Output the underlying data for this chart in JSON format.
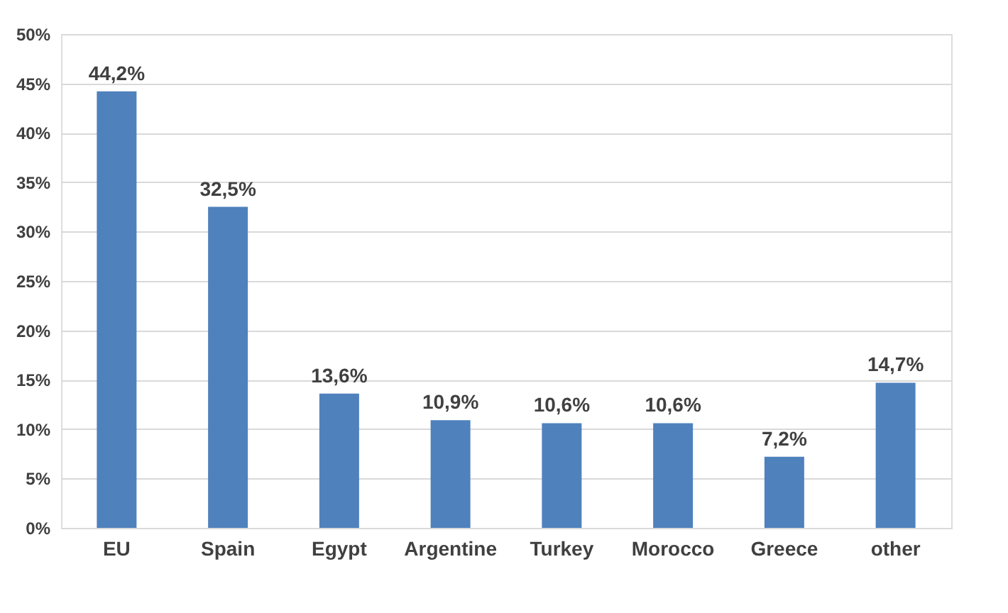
{
  "chart_data": {
    "type": "bar",
    "categories": [
      "EU",
      "Spain",
      "Egypt",
      "Argentine",
      "Turkey",
      "Morocco",
      "Greece",
      "other"
    ],
    "values": [
      44.2,
      32.5,
      13.6,
      10.9,
      10.6,
      10.6,
      7.2,
      14.7
    ],
    "value_labels": [
      "44,2%",
      "32,5%",
      "13,6%",
      "10,9%",
      "10,6%",
      "10,6%",
      "7,2%",
      "14,7%"
    ],
    "color": "#4f81bd",
    "ylim": [
      0,
      50
    ],
    "yticks": [
      {
        "value": 0,
        "label": "0%"
      },
      {
        "value": 5,
        "label": "5%"
      },
      {
        "value": 10,
        "label": "10%"
      },
      {
        "value": 15,
        "label": "15%"
      },
      {
        "value": 20,
        "label": "20%"
      },
      {
        "value": 25,
        "label": "25%"
      },
      {
        "value": 30,
        "label": "30%"
      },
      {
        "value": 35,
        "label": "35%"
      },
      {
        "value": 40,
        "label": "40%"
      },
      {
        "value": 45,
        "label": "45%"
      },
      {
        "value": 50,
        "label": "50%"
      }
    ],
    "grid": "y"
  }
}
